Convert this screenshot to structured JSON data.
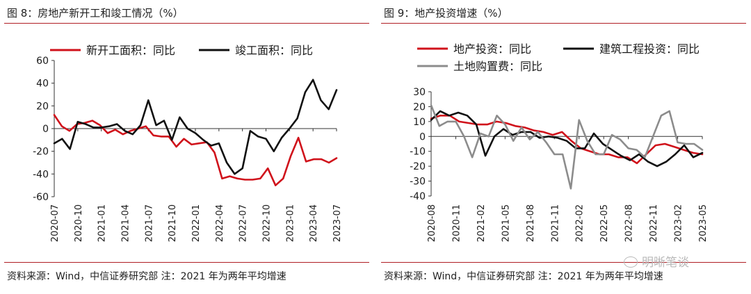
{
  "chart_data": [
    {
      "type": "line",
      "title": "图 8：房地产新开工和竣工情况（%）",
      "source": "资料来源：Wind，中信证券研究部 注：2021 年为两年平均增速",
      "ylim": [
        -60,
        60
      ],
      "yticks": [
        60,
        40,
        20,
        0,
        -20,
        -40,
        -60
      ],
      "xticks": [
        "2020-07",
        "2020-10",
        "2021-01",
        "2021-04",
        "2021-07",
        "2021-10",
        "2022-01",
        "2022-04",
        "2022-07",
        "2022-10",
        "2023-01",
        "2023-04",
        "2023-07"
      ],
      "legend": "top",
      "grid": false,
      "series": [
        {
          "name": "新开工面积：同比",
          "color": "#d0121b",
          "values": [
            12,
            2,
            -2,
            4,
            5,
            7,
            3,
            -4,
            -1,
            -5,
            -2,
            0,
            2,
            -6,
            -7,
            -7,
            -16,
            -9,
            -14,
            -13,
            -12,
            -21,
            -44,
            -42,
            -44,
            -45,
            -45,
            -44,
            -35,
            -50,
            -44,
            -24,
            -8,
            -29,
            -27,
            -27,
            -30,
            -26
          ]
        },
        {
          "name": "竣工面积：同比",
          "color": "#111111",
          "values": [
            -13,
            -9,
            -18,
            6,
            4,
            1,
            1,
            2,
            4,
            -2,
            -5,
            3,
            25,
            3,
            7,
            -10,
            10,
            0,
            -4,
            -10,
            -15,
            -13,
            -30,
            -40,
            -35,
            -2,
            -7,
            -9,
            -20,
            -8,
            0,
            9,
            32,
            43,
            25,
            17,
            34
          ]
        }
      ]
    },
    {
      "type": "line",
      "title": "图 9：地产投资增速（%）",
      "source": "资料来源：Wind，中信证券研究部 注：2021 年为两年平均增速",
      "ylim": [
        -40,
        30
      ],
      "yticks": [
        30,
        20,
        10,
        0,
        -10,
        -20,
        -30,
        -40
      ],
      "xticks": [
        "2020-08",
        "2020-11",
        "2021-02",
        "2021-05",
        "2021-08",
        "2021-11",
        "2022-02",
        "2022-05",
        "2022-08",
        "2022-11",
        "2023-02",
        "2023-05"
      ],
      "legend": "top",
      "grid": false,
      "series": [
        {
          "name": "地产投资：同比",
          "color": "#d0121b",
          "values": [
            12,
            14,
            14,
            10,
            9,
            8,
            8,
            10,
            9,
            7,
            6,
            4,
            3,
            1,
            3,
            -3,
            -8,
            -10,
            -12,
            -12,
            -14,
            -14,
            -18,
            -12,
            -6,
            -5,
            -7,
            -9,
            -11,
            -12
          ]
        },
        {
          "name": "建筑工程投资：同比",
          "color": "#111111",
          "values": [
            11,
            17,
            14,
            16,
            14,
            8,
            -13,
            0,
            5,
            1,
            3,
            3,
            -1,
            0,
            -1,
            -3,
            -8,
            -8,
            2,
            -5,
            -9,
            -13,
            -16,
            -12,
            -17,
            -20,
            -17,
            -12,
            -6,
            -14,
            -11
          ]
        },
        {
          "name": "土地购置费：同比",
          "color": "#8c8c8c",
          "values": [
            21,
            7,
            10,
            10,
            0,
            -14,
            2,
            0,
            14,
            8,
            -3,
            6,
            -2,
            3,
            -4,
            -12,
            -12,
            -35,
            11,
            -3,
            -12,
            -12,
            1,
            -2,
            -8,
            -9,
            -14,
            0,
            14,
            17,
            -4,
            -5,
            -5,
            -9
          ]
        }
      ]
    }
  ],
  "watermark": {
    "text": "明晰笔谈"
  }
}
